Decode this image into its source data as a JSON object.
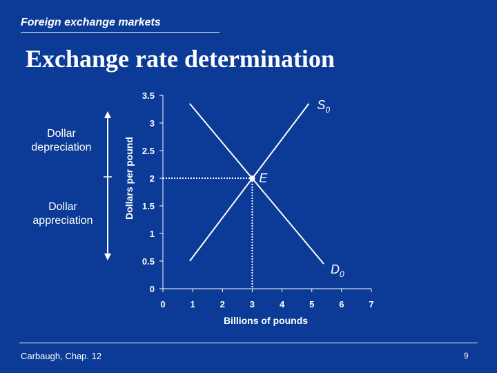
{
  "header": {
    "kicker": "Foreign exchange markets",
    "title": "Exchange rate determination"
  },
  "side": {
    "depreciation": "Dollar depreciation",
    "appreciation": "Dollar appreciation"
  },
  "footer": {
    "left": "Carbaugh, Chap. 12",
    "page": "9"
  },
  "chart_data": {
    "type": "line",
    "title": "",
    "xlabel": "Billions of pounds",
    "ylabel": "Dollars per pound",
    "xlim": [
      0,
      7
    ],
    "ylim": [
      0,
      3.5
    ],
    "x_ticks": [
      "0",
      "1",
      "2",
      "3",
      "4",
      "5",
      "6",
      "7"
    ],
    "y_ticks": [
      "0",
      "0.5",
      "1",
      "1.5",
      "2",
      "2.5",
      "3",
      "3.5"
    ],
    "grid": false,
    "series": [
      {
        "name": "S0",
        "label_main": "S",
        "label_sub": "0",
        "x": [
          0.9,
          4.9
        ],
        "y": [
          0.5,
          3.35
        ]
      },
      {
        "name": "D0",
        "label_main": "D",
        "label_sub": "0",
        "x": [
          0.9,
          5.4
        ],
        "y": [
          3.35,
          0.45
        ]
      }
    ],
    "equilibrium": {
      "label": "E",
      "x": 3,
      "y": 2
    }
  }
}
